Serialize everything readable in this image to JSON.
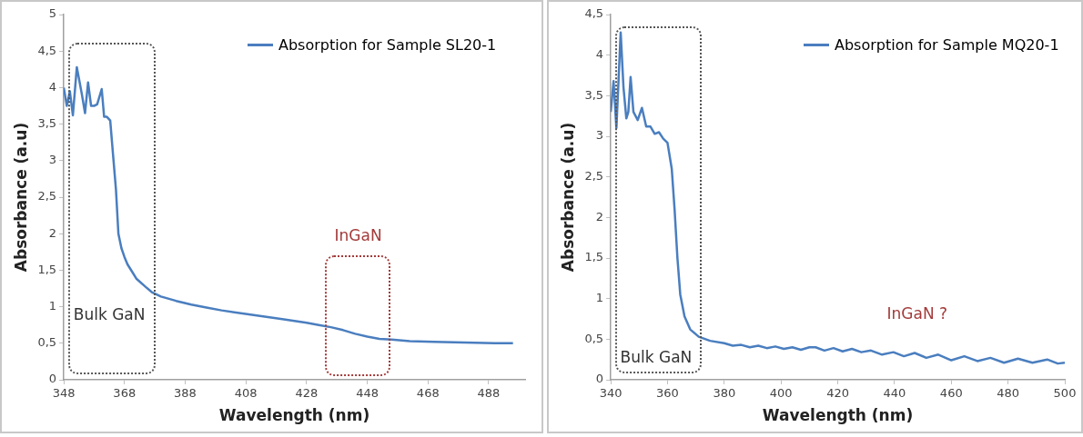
{
  "chart_data": [
    {
      "type": "line",
      "xlabel": "Wavelength (nm)",
      "ylabel": "Absorbance (a.u)",
      "annotations": [
        "Bulk GaN",
        "InGaN"
      ],
      "legend": "top right",
      "grid": false,
      "marker": "none",
      "line_style": "solid",
      "xlim": [
        348,
        500
      ],
      "xticks": [
        348,
        368,
        388,
        408,
        428,
        448,
        468,
        488
      ],
      "ylim": [
        0,
        5
      ],
      "yticks": [
        0,
        {
          "value": 0.5,
          "label": "0,5"
        },
        1,
        {
          "value": 1.5,
          "label": "1,5"
        },
        2,
        {
          "value": 2.5,
          "label": "2,5"
        },
        3,
        {
          "value": 3.5,
          "label": "3,5"
        },
        4,
        {
          "value": 4.5,
          "label": "4,5"
        },
        5
      ],
      "series": [
        {
          "name": "Absorption for Sample SL20-1",
          "color": "#4a7ebf",
          "x": [
            348,
            349,
            350,
            351,
            352.3,
            354,
            355,
            356,
            357,
            358,
            359,
            360.5,
            361.3,
            362.2,
            363.3,
            364.4,
            365.2,
            366,
            367,
            368,
            369,
            370.5,
            372,
            375,
            377,
            380,
            385,
            390,
            395,
            400,
            410,
            420,
            428,
            432,
            436,
            440,
            444,
            448,
            452,
            456,
            462,
            470,
            480,
            490,
            496
          ],
          "values": [
            4.0,
            3.75,
            3.95,
            3.62,
            4.28,
            3.9,
            3.65,
            4.07,
            3.75,
            3.75,
            3.77,
            3.98,
            3.6,
            3.6,
            3.55,
            3.0,
            2.6,
            2.0,
            1.8,
            1.68,
            1.58,
            1.48,
            1.38,
            1.27,
            1.2,
            1.14,
            1.08,
            1.03,
            0.99,
            0.95,
            0.89,
            0.83,
            0.78,
            0.75,
            0.72,
            0.68,
            0.63,
            0.59,
            0.56,
            0.55,
            0.53,
            0.52,
            0.51,
            0.5,
            0.5
          ]
        }
      ]
    },
    {
      "type": "line",
      "xlabel": "Wavelength (nm)",
      "ylabel": "Absorbance (a.u)",
      "annotations": [
        "Bulk GaN",
        "InGaN ?"
      ],
      "legend": "top right",
      "grid": false,
      "marker": "none",
      "line_style": "solid",
      "xlim": [
        340,
        500
      ],
      "xticks": [
        340,
        360,
        380,
        400,
        420,
        440,
        460,
        480,
        500
      ],
      "ylim": [
        0,
        4.5
      ],
      "yticks": [
        0,
        {
          "value": 0.5,
          "label": "0,5"
        },
        1,
        {
          "value": 1.5,
          "label": "1,5"
        },
        2,
        {
          "value": 2.5,
          "label": "2,5"
        },
        3,
        {
          "value": 3.5,
          "label": "3,5"
        },
        4,
        {
          "value": 4.5,
          "label": "4,5"
        }
      ],
      "series": [
        {
          "name": "Absorption for Sample MQ20-1",
          "color": "#4a7ebf",
          "x": [
            340,
            341,
            342,
            343.5,
            344.5,
            345.5,
            346.2,
            347,
            348,
            349.5,
            351,
            352.5,
            354,
            355.5,
            357,
            358.5,
            360,
            361.5,
            362.5,
            363.5,
            364.5,
            366,
            368,
            371,
            375,
            380,
            383,
            386,
            389,
            392,
            395,
            398,
            401,
            404,
            407,
            410,
            412.2,
            415.3,
            418.5,
            421.7,
            425,
            428.3,
            431.7,
            435.6,
            439.6,
            443.3,
            447.1,
            451.2,
            455.4,
            460,
            464.6,
            469.2,
            473.8,
            478.6,
            483.5,
            488.6,
            493.8,
            497.5,
            500
          ],
          "values": [
            3.3,
            3.68,
            3.1,
            4.28,
            3.6,
            3.22,
            3.3,
            3.73,
            3.3,
            3.2,
            3.35,
            3.12,
            3.12,
            3.03,
            3.05,
            2.97,
            2.92,
            2.6,
            2.1,
            1.5,
            1.05,
            0.78,
            0.62,
            0.53,
            0.48,
            0.45,
            0.42,
            0.43,
            0.4,
            0.42,
            0.39,
            0.41,
            0.38,
            0.4,
            0.37,
            0.4,
            0.4,
            0.36,
            0.39,
            0.35,
            0.38,
            0.34,
            0.36,
            0.31,
            0.34,
            0.29,
            0.33,
            0.27,
            0.31,
            0.24,
            0.29,
            0.23,
            0.27,
            0.21,
            0.26,
            0.21,
            0.25,
            0.2,
            0.21
          ]
        }
      ]
    }
  ]
}
